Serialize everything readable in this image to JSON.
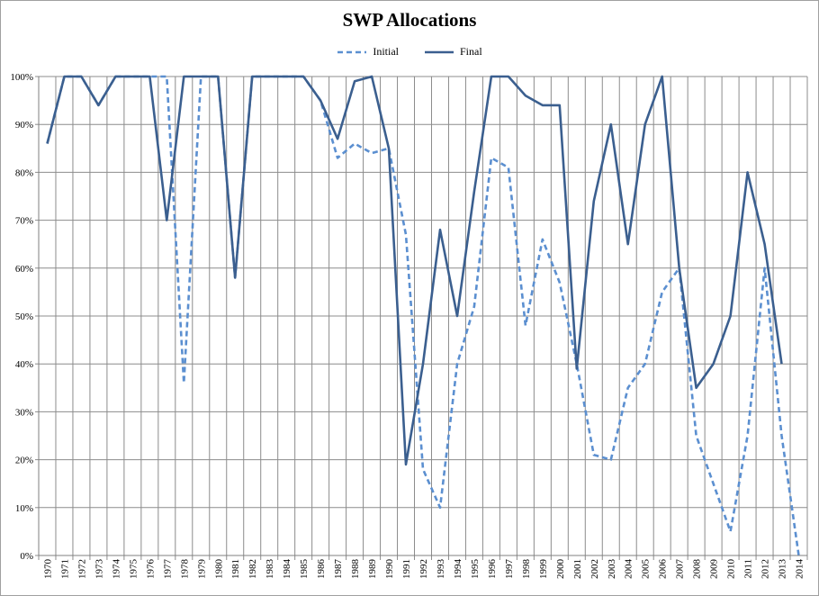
{
  "chart_data": {
    "type": "line",
    "title": "SWP Allocations",
    "xlabel": "",
    "ylabel": "",
    "categories": [
      "1970",
      "1971",
      "1972",
      "1973",
      "1974",
      "1975",
      "1976",
      "1977",
      "1978",
      "1979",
      "1980",
      "1981",
      "1982",
      "1983",
      "1984",
      "1985",
      "1986",
      "1987",
      "1988",
      "1989",
      "1990",
      "1991",
      "1992",
      "1993",
      "1994",
      "1995",
      "1996",
      "1997",
      "1998",
      "1999",
      "2000",
      "2001",
      "2002",
      "2003",
      "2004",
      "2005",
      "2006",
      "2007",
      "2008",
      "2009",
      "2010",
      "2011",
      "2012",
      "2013",
      "2014"
    ],
    "y_ticks": [
      "0%",
      "10%",
      "20%",
      "30%",
      "40%",
      "50%",
      "60%",
      "70%",
      "80%",
      "90%",
      "100%"
    ],
    "ylim": [
      0,
      100
    ],
    "grid": "vertical and horizontal",
    "legend_position": "top-center",
    "series": [
      {
        "name": "Initial",
        "style": "dashed",
        "color": "#5b8fd0",
        "values": [
          86,
          100,
          100,
          94,
          100,
          100,
          100,
          100,
          36,
          100,
          100,
          58,
          100,
          100,
          100,
          100,
          95,
          83,
          86,
          84,
          85,
          67,
          18,
          10,
          40,
          52,
          83,
          81,
          48,
          66,
          57,
          40,
          21,
          20,
          35,
          40,
          55,
          60,
          25,
          15,
          5,
          25,
          60,
          25,
          0
        ]
      },
      {
        "name": "Final",
        "style": "solid",
        "color": "#3b5f8f",
        "values": [
          86,
          100,
          100,
          94,
          100,
          100,
          100,
          70,
          100,
          100,
          100,
          58,
          100,
          100,
          100,
          100,
          95,
          87,
          99,
          100,
          85,
          19,
          40,
          68,
          50,
          76,
          100,
          100,
          96,
          94,
          94,
          39,
          74,
          90,
          65,
          90,
          100,
          60,
          35,
          40,
          50,
          80,
          65,
          40,
          null
        ]
      }
    ]
  }
}
